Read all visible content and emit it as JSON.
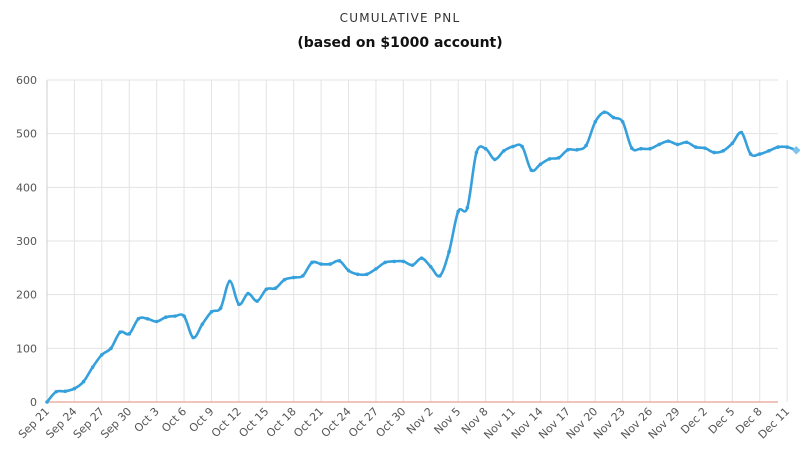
{
  "chart_data": {
    "type": "line",
    "title": "CUMULATIVE PNL",
    "subtitle": "(based on $1000 account)",
    "xlabel": "",
    "ylabel": "",
    "ylim": [
      0,
      600
    ],
    "y_ticks": [
      0,
      100,
      200,
      300,
      400,
      500,
      600
    ],
    "grid": true,
    "x_ticks": [
      "Sep 21",
      "Sep 24",
      "Sep 27",
      "Sep 30",
      "Oct 3",
      "Oct 6",
      "Oct 9",
      "Oct 12",
      "Oct 15",
      "Oct 18",
      "Oct 21",
      "Oct 24",
      "Oct 27",
      "Oct 30",
      "Nov 2",
      "Nov 5",
      "Nov 8",
      "Nov 11",
      "Nov 14",
      "Nov 17",
      "Nov 20",
      "Nov 23",
      "Nov 26",
      "Nov 29",
      "Dec 2",
      "Dec 5",
      "Dec 8",
      "Dec 11"
    ],
    "x": [
      "Sep 21",
      "Sep 22",
      "Sep 23",
      "Sep 24",
      "Sep 25",
      "Sep 26",
      "Sep 27",
      "Sep 28",
      "Sep 29",
      "Sep 30",
      "Oct 1",
      "Oct 2",
      "Oct 3",
      "Oct 4",
      "Oct 5",
      "Oct 6",
      "Oct 7",
      "Oct 8",
      "Oct 9",
      "Oct 10",
      "Oct 11",
      "Oct 12",
      "Oct 13",
      "Oct 14",
      "Oct 15",
      "Oct 16",
      "Oct 17",
      "Oct 18",
      "Oct 19",
      "Oct 20",
      "Oct 21",
      "Oct 22",
      "Oct 23",
      "Oct 24",
      "Oct 25",
      "Oct 26",
      "Oct 27",
      "Oct 28",
      "Oct 29",
      "Oct 30",
      "Oct 31",
      "Nov 1",
      "Nov 2",
      "Nov 3",
      "Nov 4",
      "Nov 5",
      "Nov 6",
      "Nov 7",
      "Nov 8",
      "Nov 9",
      "Nov 10",
      "Nov 11",
      "Nov 12",
      "Nov 13",
      "Nov 14",
      "Nov 15",
      "Nov 16",
      "Nov 17",
      "Nov 18",
      "Nov 19",
      "Nov 20",
      "Nov 21",
      "Nov 22",
      "Nov 23",
      "Nov 24",
      "Nov 25",
      "Nov 26",
      "Nov 27",
      "Nov 28",
      "Nov 29",
      "Nov 30",
      "Dec 1",
      "Dec 2",
      "Dec 3",
      "Dec 4",
      "Dec 5",
      "Dec 6",
      "Dec 7",
      "Dec 8",
      "Dec 9",
      "Dec 10",
      "Dec 11",
      "Dec 12"
    ],
    "series": [
      {
        "color": "#35a0dc",
        "values": [
          0,
          19,
          20,
          25,
          38,
          65,
          88,
          100,
          130,
          127,
          155,
          155,
          150,
          158,
          160,
          160,
          120,
          145,
          168,
          175,
          225,
          182,
          202,
          188,
          210,
          212,
          228,
          232,
          235,
          260,
          257,
          257,
          263,
          245,
          238,
          238,
          248,
          260,
          262,
          262,
          255,
          268,
          252,
          235,
          280,
          355,
          362,
          465,
          472,
          452,
          468,
          476,
          476,
          432,
          443,
          453,
          455,
          470,
          470,
          478,
          522,
          540,
          530,
          522,
          473,
          472,
          472,
          480,
          486,
          480,
          484,
          475,
          473,
          465,
          468,
          482,
          502,
          462,
          462,
          468,
          475,
          475,
          469
        ]
      }
    ],
    "zero_line_color": "#e8a090"
  }
}
